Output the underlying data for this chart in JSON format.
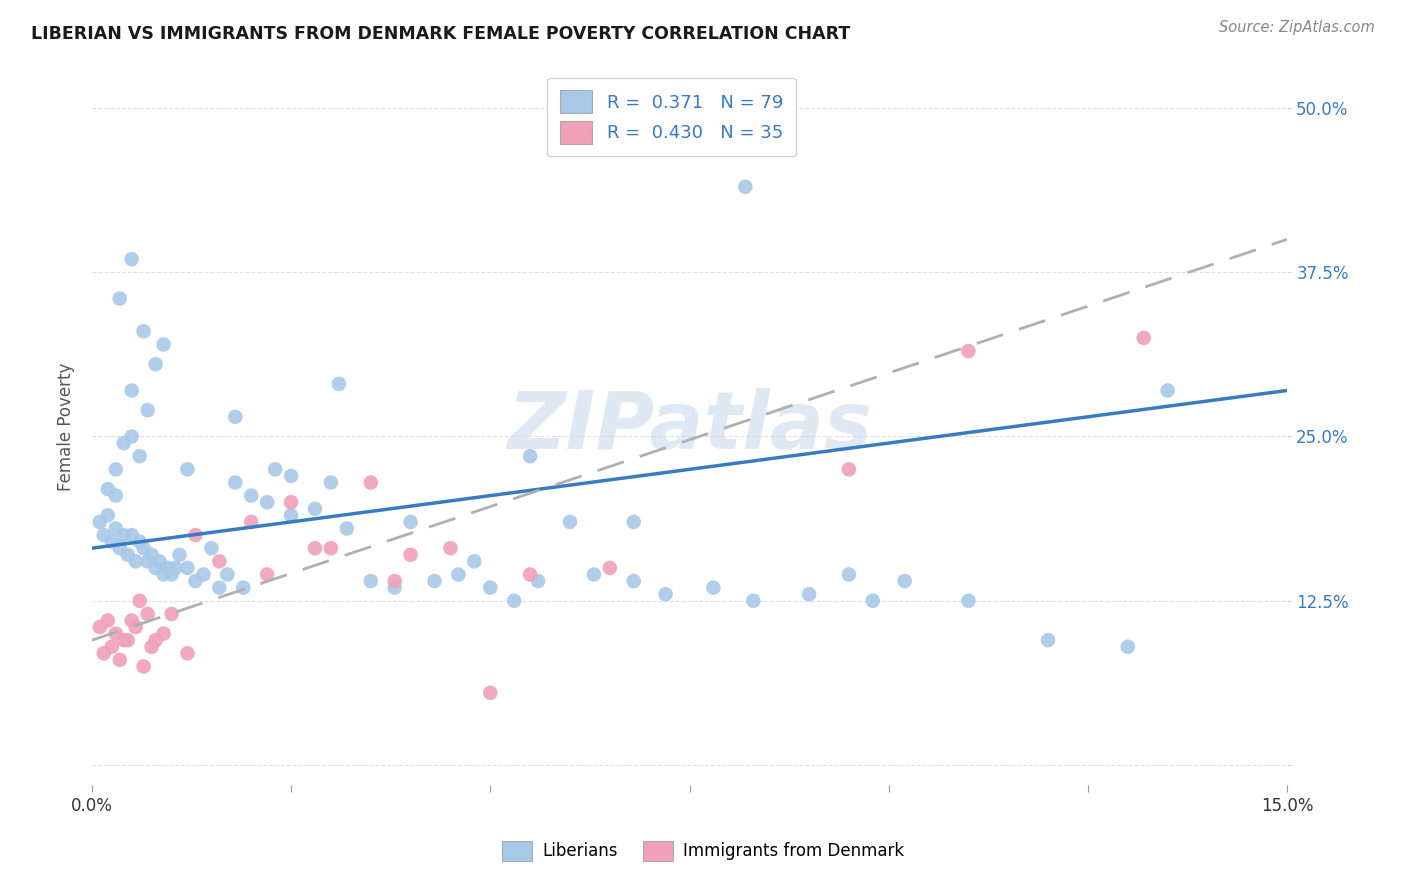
{
  "title": "LIBERIAN VS IMMIGRANTS FROM DENMARK FEMALE POVERTY CORRELATION CHART",
  "source": "Source: ZipAtlas.com",
  "ylabel": "Female Poverty",
  "watermark": "ZIPatlas",
  "xlim": [
    0.0,
    15.0
  ],
  "ylim": [
    -1.5,
    53.0
  ],
  "yticks": [
    0.0,
    12.5,
    25.0,
    37.5,
    50.0
  ],
  "ytick_labels": [
    "",
    "12.5%",
    "25.0%",
    "37.5%",
    "50.0%"
  ],
  "xtick_positions": [
    0.0,
    2.5,
    5.0,
    7.5,
    10.0,
    12.5,
    15.0
  ],
  "xtick_labels": [
    "0.0%",
    "",
    "",
    "",
    "",
    "",
    "15.0%"
  ],
  "background_color": "#ffffff",
  "grid_color": "#e0e0e0",
  "liberian_color": "#a8c8e8",
  "denmark_color": "#f0a0b8",
  "liberian_R": 0.371,
  "liberian_N": 79,
  "denmark_R": 0.43,
  "denmark_N": 35,
  "liberian_line_color": "#3a7abf",
  "denmark_line_color": "#b0b0b0",
  "legend_text_color": "#3a7abf",
  "liberian_x": [
    0.1,
    0.15,
    0.2,
    0.25,
    0.3,
    0.35,
    0.4,
    0.45,
    0.5,
    0.55,
    0.6,
    0.65,
    0.7,
    0.75,
    0.8,
    0.85,
    0.9,
    0.95,
    1.0,
    1.05,
    1.1,
    1.2,
    1.3,
    1.4,
    1.5,
    1.6,
    1.7,
    1.8,
    1.9,
    2.0,
    0.2,
    0.3,
    0.4,
    0.5,
    0.6,
    0.5,
    0.7,
    0.8,
    0.9,
    0.3,
    2.2,
    2.5,
    2.8,
    3.0,
    3.2,
    3.5,
    3.8,
    4.0,
    4.3,
    4.6,
    5.0,
    5.3,
    5.6,
    6.0,
    6.3,
    6.8,
    7.2,
    7.8,
    8.3,
    9.0,
    9.5,
    10.2,
    11.0,
    12.0,
    13.0,
    0.35,
    0.5,
    0.65,
    1.2,
    2.3,
    3.1,
    4.8,
    5.5,
    6.8,
    8.2,
    9.8,
    1.8,
    2.5,
    13.5
  ],
  "liberian_y": [
    18.5,
    17.5,
    19.0,
    17.0,
    18.0,
    16.5,
    17.5,
    16.0,
    17.5,
    15.5,
    17.0,
    16.5,
    15.5,
    16.0,
    15.0,
    15.5,
    14.5,
    15.0,
    14.5,
    15.0,
    16.0,
    15.0,
    14.0,
    14.5,
    16.5,
    13.5,
    14.5,
    21.5,
    13.5,
    20.5,
    21.0,
    22.5,
    24.5,
    25.0,
    23.5,
    28.5,
    27.0,
    30.5,
    32.0,
    20.5,
    20.0,
    22.0,
    19.5,
    21.5,
    18.0,
    14.0,
    13.5,
    18.5,
    14.0,
    14.5,
    13.5,
    12.5,
    14.0,
    18.5,
    14.5,
    14.0,
    13.0,
    13.5,
    12.5,
    13.0,
    14.5,
    14.0,
    12.5,
    9.5,
    9.0,
    35.5,
    38.5,
    33.0,
    22.5,
    22.5,
    29.0,
    15.5,
    23.5,
    18.5,
    44.0,
    12.5,
    26.5,
    19.0,
    28.5
  ],
  "denmark_x": [
    0.1,
    0.2,
    0.3,
    0.4,
    0.5,
    0.6,
    0.7,
    0.8,
    0.9,
    1.0,
    0.15,
    0.25,
    0.35,
    0.45,
    0.55,
    0.65,
    0.75,
    1.3,
    1.6,
    2.0,
    2.5,
    3.0,
    3.5,
    4.0,
    4.5,
    1.2,
    2.2,
    2.8,
    3.8,
    5.0,
    5.5,
    6.5,
    9.5,
    11.0,
    13.2
  ],
  "denmark_y": [
    10.5,
    11.0,
    10.0,
    9.5,
    11.0,
    12.5,
    11.5,
    9.5,
    10.0,
    11.5,
    8.5,
    9.0,
    8.0,
    9.5,
    10.5,
    7.5,
    9.0,
    17.5,
    15.5,
    18.5,
    20.0,
    16.5,
    21.5,
    16.0,
    16.5,
    8.5,
    14.5,
    16.5,
    14.0,
    5.5,
    14.5,
    15.0,
    22.5,
    31.5,
    32.5
  ],
  "lib_line_x": [
    0.0,
    15.0
  ],
  "lib_line_y": [
    16.5,
    28.5
  ],
  "den_line_x": [
    0.0,
    15.0
  ],
  "den_line_y": [
    9.5,
    40.0
  ]
}
